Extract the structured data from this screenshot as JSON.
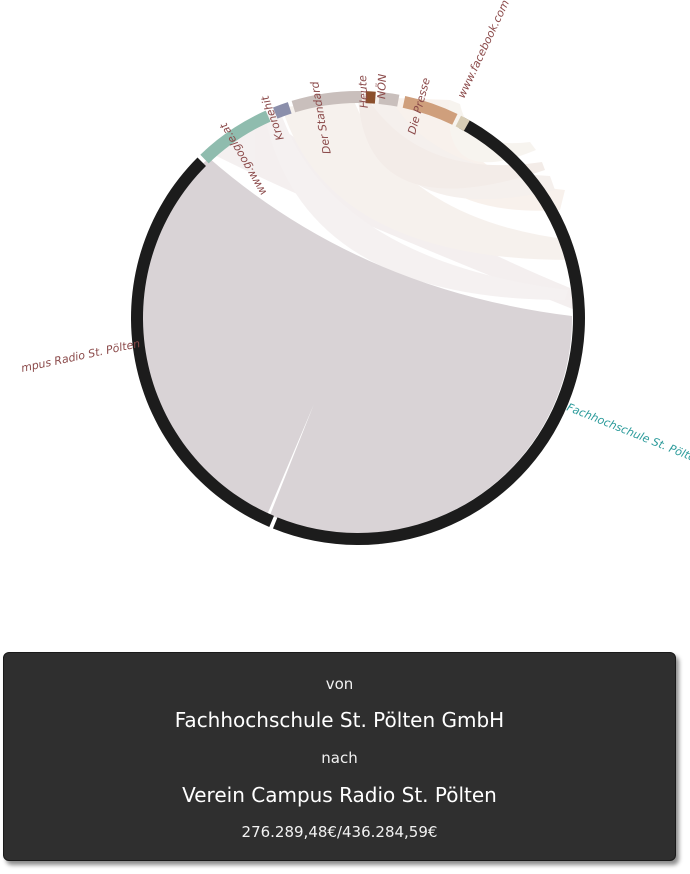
{
  "diagram": {
    "type": "chord",
    "groups": [
      {
        "label": "Fachhochschule St. Pölten",
        "color": "#1c1c1c",
        "label_color": "#2a9a9a"
      },
      {
        "label": "mpus Radio St. Pölten",
        "color": "#1c1c1c",
        "label_color": "#8b4a4a"
      },
      {
        "label": "www.google.at",
        "color": "#8fbcae",
        "label_color": "#8b4a4a"
      },
      {
        "label": "Kronehit",
        "color": "#8b8fab",
        "label_color": "#8b4a4a"
      },
      {
        "label": "Der Standard",
        "color": "#c9bfbc",
        "label_color": "#8b4a4a"
      },
      {
        "label": "Heute",
        "color": "#8b4f2c",
        "label_color": "#8b4a4a"
      },
      {
        "label": "NÖN",
        "color": "#c9bfbc",
        "label_color": "#8b4a4a"
      },
      {
        "label": "Die Presse",
        "color": "#cf9f7c",
        "label_color": "#8b4a4a"
      },
      {
        "label": "www.facebook.com",
        "color": "#d7ccb4",
        "label_color": "#8b4a4a"
      }
    ],
    "chord_color": "#d9d3d6"
  },
  "info": {
    "von_label": "von",
    "from_name": "Fachhochschule St. Pölten GmbH",
    "nach_label": "nach",
    "to_name": "Verein Campus Radio St. Pölten",
    "amount": "276.289,48€/436.284,59€"
  }
}
